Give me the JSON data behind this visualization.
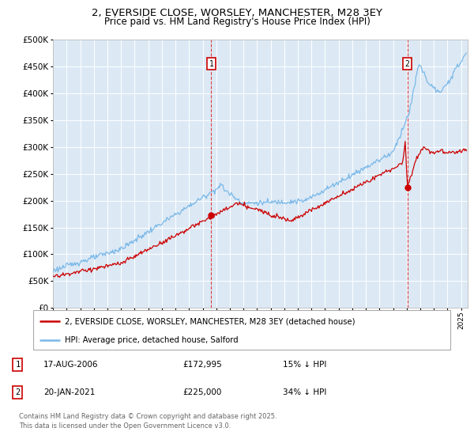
{
  "title": "2, EVERSIDE CLOSE, WORSLEY, MANCHESTER, M28 3EY",
  "subtitle": "Price paid vs. HM Land Registry's House Price Index (HPI)",
  "plot_bg_color": "#dce9f5",
  "grid_color": "#ffffff",
  "hpi_color": "#7ab8e8",
  "price_color": "#cc0000",
  "sale1_x": 2006.63,
  "sale1_y": 172995,
  "sale2_x": 2021.05,
  "sale2_y": 225000,
  "legend_line1": "2, EVERSIDE CLOSE, WORSLEY, MANCHESTER, M28 3EY (detached house)",
  "legend_line2": "HPI: Average price, detached house, Salford",
  "table_row1": [
    "1",
    "17-AUG-2006",
    "£172,995",
    "15% ↓ HPI"
  ],
  "table_row2": [
    "2",
    "20-JAN-2021",
    "£225,000",
    "34% ↓ HPI"
  ],
  "footer": "Contains HM Land Registry data © Crown copyright and database right 2025.\nThis data is licensed under the Open Government Licence v3.0.",
  "ylim": [
    0,
    500000
  ],
  "yticks": [
    0,
    50000,
    100000,
    150000,
    200000,
    250000,
    300000,
    350000,
    400000,
    450000,
    500000
  ],
  "xmin": 1995,
  "xmax": 2025.5,
  "title_fontsize": 9.5,
  "subtitle_fontsize": 8.5
}
